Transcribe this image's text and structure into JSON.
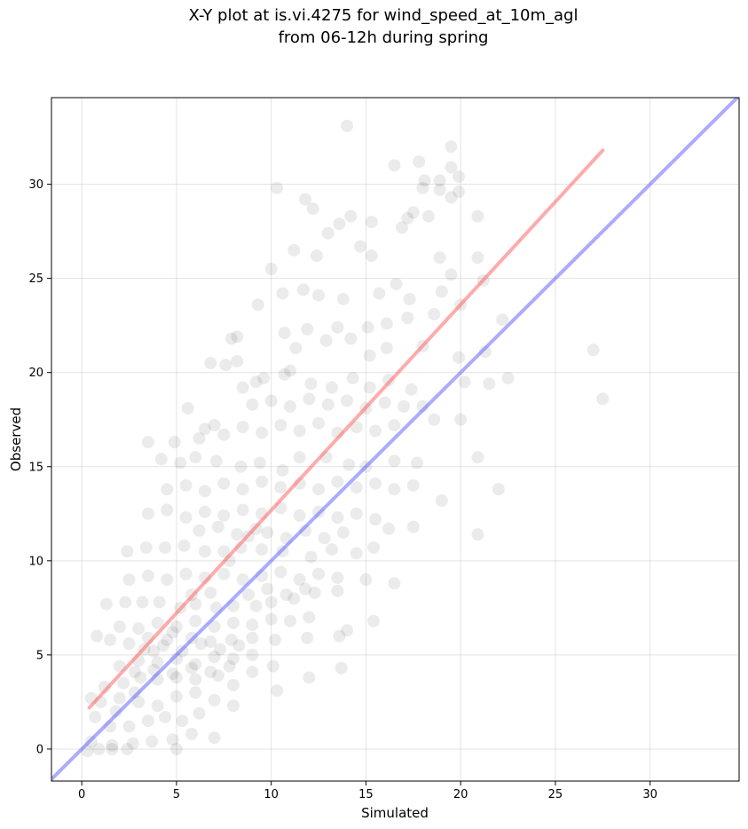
{
  "chart_data": {
    "type": "scatter",
    "title_lines": [
      "X-Y plot at is.vi.4275 for wind_speed_at_10m_agl",
      "from 06-12h during spring"
    ],
    "xlabel": "Simulated",
    "ylabel": "Observed",
    "xlim": [
      -1.6,
      34.7
    ],
    "ylim": [
      -1.7,
      34.6
    ],
    "xticks": [
      0,
      5,
      10,
      15,
      20,
      25,
      30
    ],
    "yticks": [
      0,
      5,
      10,
      15,
      20,
      25,
      30
    ],
    "grid": true,
    "legend": "none",
    "point_color": "#000000",
    "point_opacity": 0.08,
    "sample_points": [
      [
        14.0,
        33.1
      ],
      [
        10.3,
        29.8
      ],
      [
        11.8,
        29.2
      ],
      [
        12.2,
        28.7
      ],
      [
        16.5,
        31.0
      ],
      [
        17.8,
        31.2
      ],
      [
        19.5,
        32.0
      ],
      [
        19.5,
        30.9
      ],
      [
        19.9,
        30.4
      ],
      [
        19.9,
        29.6
      ],
      [
        18.9,
        30.2
      ],
      [
        18.1,
        30.2
      ],
      [
        18.0,
        29.8
      ],
      [
        19.5,
        29.3
      ],
      [
        18.9,
        29.7
      ],
      [
        20.9,
        28.3
      ],
      [
        17.5,
        28.5
      ],
      [
        17.2,
        28.2
      ],
      [
        18.3,
        28.3
      ],
      [
        16.9,
        27.7
      ],
      [
        15.3,
        28.0
      ],
      [
        14.2,
        28.3
      ],
      [
        13.6,
        27.9
      ],
      [
        13.0,
        27.4
      ],
      [
        14.7,
        26.7
      ],
      [
        15.3,
        26.2
      ],
      [
        12.4,
        26.2
      ],
      [
        11.2,
        26.5
      ],
      [
        10.0,
        25.5
      ],
      [
        18.9,
        26.1
      ],
      [
        20.9,
        26.1
      ],
      [
        19.5,
        25.2
      ],
      [
        21.2,
        24.9
      ],
      [
        19.0,
        24.3
      ],
      [
        17.3,
        23.9
      ],
      [
        16.6,
        24.7
      ],
      [
        15.7,
        24.2
      ],
      [
        13.8,
        23.9
      ],
      [
        12.5,
        24.1
      ],
      [
        11.7,
        24.4
      ],
      [
        10.6,
        24.2
      ],
      [
        9.3,
        23.6
      ],
      [
        20.0,
        23.6
      ],
      [
        18.6,
        23.1
      ],
      [
        17.2,
        22.9
      ],
      [
        16.1,
        22.6
      ],
      [
        15.1,
        22.4
      ],
      [
        13.5,
        22.4
      ],
      [
        11.9,
        22.3
      ],
      [
        10.7,
        22.1
      ],
      [
        7.9,
        21.8
      ],
      [
        8.2,
        21.9
      ],
      [
        11.3,
        21.3
      ],
      [
        12.9,
        21.7
      ],
      [
        14.2,
        21.8
      ],
      [
        15.2,
        20.9
      ],
      [
        16.1,
        21.3
      ],
      [
        18.0,
        21.4
      ],
      [
        19.9,
        20.8
      ],
      [
        21.3,
        21.1
      ],
      [
        22.2,
        22.8
      ],
      [
        27.0,
        21.2
      ],
      [
        27.5,
        18.6
      ],
      [
        22.5,
        19.7
      ],
      [
        21.5,
        19.4
      ],
      [
        20.2,
        19.5
      ],
      [
        20.0,
        17.5
      ],
      [
        18.6,
        17.5
      ],
      [
        18.0,
        18.2
      ],
      [
        17.4,
        19.1
      ],
      [
        16.2,
        19.6
      ],
      [
        15.2,
        19.2
      ],
      [
        14.3,
        19.7
      ],
      [
        13.2,
        19.2
      ],
      [
        12.1,
        19.4
      ],
      [
        10.7,
        19.9
      ],
      [
        9.6,
        19.7
      ],
      [
        8.5,
        19.2
      ],
      [
        7.6,
        20.4
      ],
      [
        6.8,
        20.5
      ],
      [
        8.2,
        20.6
      ],
      [
        9.2,
        19.5
      ],
      [
        11.0,
        20.1
      ],
      [
        7.0,
        17.2
      ],
      [
        5.6,
        18.1
      ],
      [
        6.2,
        16.5
      ],
      [
        4.9,
        16.3
      ],
      [
        3.5,
        16.3
      ],
      [
        4.2,
        15.4
      ],
      [
        5.2,
        15.2
      ],
      [
        6.0,
        15.5
      ],
      [
        7.1,
        15.3
      ],
      [
        8.4,
        15.0
      ],
      [
        9.4,
        15.2
      ],
      [
        10.6,
        14.8
      ],
      [
        11.5,
        15.5
      ],
      [
        12.9,
        15.5
      ],
      [
        14.1,
        15.1
      ],
      [
        15.0,
        15.0
      ],
      [
        16.5,
        15.3
      ],
      [
        17.7,
        15.2
      ],
      [
        19.0,
        13.2
      ],
      [
        20.9,
        15.5
      ],
      [
        22.0,
        13.8
      ],
      [
        20.9,
        11.4
      ],
      [
        17.5,
        11.8
      ],
      [
        16.2,
        11.7
      ],
      [
        15.4,
        10.7
      ],
      [
        14.5,
        10.4
      ],
      [
        13.2,
        10.6
      ],
      [
        12.1,
        10.2
      ],
      [
        10.6,
        10.5
      ],
      [
        9.5,
        10.6
      ],
      [
        8.4,
        10.7
      ],
      [
        7.5,
        10.5
      ],
      [
        6.5,
        10.5
      ],
      [
        5.4,
        10.8
      ],
      [
        4.4,
        10.7
      ],
      [
        3.4,
        10.7
      ],
      [
        2.4,
        10.5
      ],
      [
        16.5,
        8.8
      ],
      [
        15.0,
        9.0
      ],
      [
        13.5,
        8.4
      ],
      [
        12.3,
        8.3
      ],
      [
        11.2,
        8.0
      ],
      [
        10.0,
        7.8
      ],
      [
        9.2,
        7.6
      ],
      [
        8.0,
        7.6
      ],
      [
        7.1,
        7.5
      ],
      [
        6.0,
        7.7
      ],
      [
        5.2,
        7.5
      ],
      [
        4.1,
        7.8
      ],
      [
        3.2,
        7.8
      ],
      [
        2.3,
        7.8
      ],
      [
        1.3,
        7.7
      ],
      [
        15.4,
        6.8
      ],
      [
        14.0,
        6.3
      ],
      [
        13.6,
        6.0
      ],
      [
        11.9,
        5.9
      ],
      [
        10.2,
        5.8
      ],
      [
        9.0,
        5.9
      ],
      [
        7.9,
        5.8
      ],
      [
        6.8,
        5.7
      ],
      [
        5.8,
        5.9
      ],
      [
        4.5,
        5.8
      ],
      [
        3.5,
        5.9
      ],
      [
        2.5,
        5.6
      ],
      [
        1.5,
        5.8
      ],
      [
        0.8,
        6.0
      ],
      [
        13.7,
        4.3
      ],
      [
        12.0,
        3.8
      ],
      [
        10.3,
        3.1
      ],
      [
        10.1,
        4.4
      ],
      [
        9.0,
        4.1
      ],
      [
        8.0,
        3.4
      ],
      [
        7.2,
        3.9
      ],
      [
        6.0,
        3.7
      ],
      [
        5.0,
        3.8
      ],
      [
        4.0,
        3.7
      ],
      [
        3.1,
        3.8
      ],
      [
        2.2,
        3.5
      ],
      [
        1.2,
        3.3
      ],
      [
        0.5,
        2.7
      ],
      [
        8.0,
        2.3
      ],
      [
        7.0,
        2.6
      ],
      [
        6.2,
        1.9
      ],
      [
        5.3,
        1.5
      ],
      [
        4.4,
        1.7
      ],
      [
        3.5,
        1.5
      ],
      [
        2.5,
        1.2
      ],
      [
        1.5,
        1.2
      ],
      [
        0.7,
        1.7
      ],
      [
        7.0,
        0.6
      ],
      [
        5.8,
        0.8
      ],
      [
        4.8,
        0.5
      ],
      [
        3.7,
        0.4
      ],
      [
        2.7,
        0.3
      ],
      [
        1.6,
        0.2
      ],
      [
        0.5,
        0.4
      ],
      [
        0.9,
        0.0
      ],
      [
        1.6,
        0.0
      ],
      [
        2.4,
        0.0
      ],
      [
        5.0,
        0.0
      ],
      [
        0.3,
        -0.1
      ],
      [
        1.0,
        2.5
      ],
      [
        2.0,
        2.7
      ],
      [
        3.0,
        2.5
      ],
      [
        4.0,
        2.3
      ],
      [
        5.0,
        2.8
      ],
      [
        6.0,
        3.0
      ],
      [
        2.0,
        4.4
      ],
      [
        3.0,
        4.7
      ],
      [
        4.0,
        4.6
      ],
      [
        5.0,
        4.8
      ],
      [
        6.0,
        4.5
      ],
      [
        7.0,
        4.9
      ],
      [
        8.0,
        4.8
      ],
      [
        9.0,
        5.0
      ],
      [
        2.0,
        6.5
      ],
      [
        3.0,
        6.4
      ],
      [
        4.0,
        6.7
      ],
      [
        5.0,
        6.5
      ],
      [
        6.0,
        6.8
      ],
      [
        7.0,
        6.5
      ],
      [
        8.0,
        6.7
      ],
      [
        9.0,
        6.6
      ],
      [
        10.0,
        6.9
      ],
      [
        11.0,
        6.8
      ],
      [
        12.0,
        7.0
      ],
      [
        2.5,
        9.0
      ],
      [
        3.5,
        9.2
      ],
      [
        4.5,
        9.0
      ],
      [
        5.5,
        9.3
      ],
      [
        6.5,
        9.1
      ],
      [
        7.5,
        9.3
      ],
      [
        8.5,
        9.0
      ],
      [
        9.5,
        9.2
      ],
      [
        10.5,
        9.4
      ],
      [
        11.5,
        9.0
      ],
      [
        12.5,
        9.3
      ],
      [
        13.5,
        9.1
      ],
      [
        3.5,
        12.5
      ],
      [
        4.5,
        12.7
      ],
      [
        5.5,
        12.3
      ],
      [
        6.5,
        12.6
      ],
      [
        7.5,
        12.4
      ],
      [
        8.5,
        12.7
      ],
      [
        9.5,
        12.5
      ],
      [
        10.5,
        12.8
      ],
      [
        11.5,
        12.4
      ],
      [
        12.5,
        12.6
      ],
      [
        13.5,
        12.3
      ],
      [
        14.5,
        12.5
      ],
      [
        15.5,
        12.2
      ],
      [
        4.5,
        13.8
      ],
      [
        5.5,
        14.0
      ],
      [
        6.5,
        13.7
      ],
      [
        7.5,
        14.1
      ],
      [
        8.5,
        13.8
      ],
      [
        9.5,
        14.2
      ],
      [
        10.5,
        13.9
      ],
      [
        11.5,
        14.1
      ],
      [
        12.5,
        13.8
      ],
      [
        13.5,
        14.2
      ],
      [
        14.5,
        13.9
      ],
      [
        15.5,
        14.1
      ],
      [
        16.5,
        13.8
      ],
      [
        17.5,
        14.0
      ],
      [
        6.5,
        17.0
      ],
      [
        7.5,
        16.7
      ],
      [
        8.5,
        17.1
      ],
      [
        9.5,
        16.8
      ],
      [
        10.5,
        17.2
      ],
      [
        11.5,
        16.9
      ],
      [
        12.5,
        17.3
      ],
      [
        13.5,
        16.8
      ],
      [
        14.5,
        17.1
      ],
      [
        15.5,
        16.9
      ],
      [
        16.5,
        17.2
      ],
      [
        9.0,
        18.3
      ],
      [
        10.0,
        18.5
      ],
      [
        11.0,
        18.2
      ],
      [
        12.0,
        18.6
      ],
      [
        13.0,
        18.3
      ],
      [
        14.0,
        18.5
      ],
      [
        15.0,
        18.1
      ],
      [
        16.0,
        18.4
      ],
      [
        17.0,
        18.2
      ],
      [
        1.8,
        2.0
      ],
      [
        2.8,
        3.0
      ],
      [
        3.8,
        5.2
      ],
      [
        4.8,
        6.2
      ],
      [
        5.8,
        8.2
      ],
      [
        6.8,
        8.3
      ],
      [
        7.8,
        10.0
      ],
      [
        8.8,
        11.3
      ],
      [
        9.8,
        11.5
      ],
      [
        10.8,
        11.2
      ],
      [
        11.8,
        11.6
      ],
      [
        12.8,
        11.2
      ],
      [
        13.8,
        11.5
      ],
      [
        3.3,
        5.3
      ],
      [
        4.3,
        5.5
      ],
      [
        5.3,
        5.2
      ],
      [
        6.3,
        5.6
      ],
      [
        7.3,
        5.3
      ],
      [
        8.3,
        5.5
      ],
      [
        2.8,
        4.1
      ],
      [
        3.8,
        4.2
      ],
      [
        4.8,
        4.0
      ],
      [
        5.8,
        4.3
      ],
      [
        6.8,
        4.1
      ],
      [
        7.8,
        4.4
      ],
      [
        8.8,
        8.2
      ],
      [
        9.8,
        8.5
      ],
      [
        10.8,
        8.2
      ],
      [
        11.8,
        8.5
      ],
      [
        6.2,
        11.6
      ],
      [
        7.2,
        11.8
      ],
      [
        8.2,
        11.4
      ],
      [
        9.2,
        11.7
      ]
    ],
    "series": [
      {
        "type": "line",
        "color": "#ff6666",
        "x": [
          0.4,
          27.5
        ],
        "y": [
          2.2,
          31.8
        ]
      },
      {
        "type": "line",
        "color": "#6666ff",
        "x": [
          -1.6,
          34.7
        ],
        "y": [
          -1.6,
          34.7
        ]
      }
    ]
  }
}
